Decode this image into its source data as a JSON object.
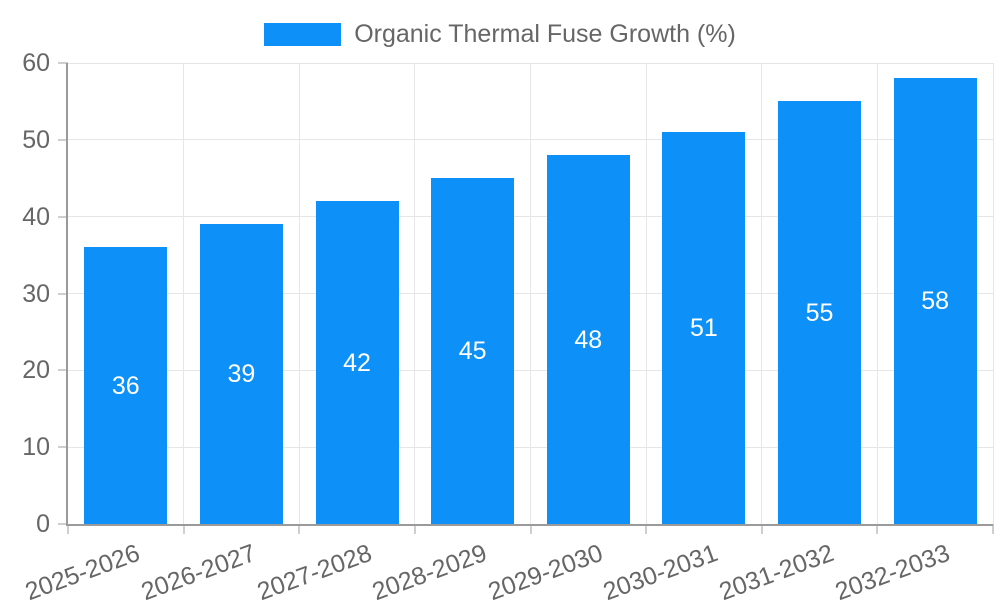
{
  "legend": {
    "swatch_color": "#0d90f8",
    "label": "Organic Thermal Fuse Growth (%)"
  },
  "colors": {
    "bar": "#0d90f8",
    "grid": "#e6e6e6",
    "axis_border": "#9a9a9a",
    "tick_stub": "#cfcfcf",
    "tick_text": "#666666",
    "value_label_text": "#ffffff",
    "background": "#ffffff"
  },
  "chart_data": {
    "type": "bar",
    "title": "Organic Thermal Fuse Growth (%)",
    "categories": [
      "2025-2026",
      "2026-2027",
      "2027-2028",
      "2028-2029",
      "2029-2030",
      "2030-2031",
      "2031-2032",
      "2032-2033"
    ],
    "values": [
      36,
      39,
      42,
      45,
      48,
      51,
      55,
      58
    ],
    "value_labels": [
      "36",
      "39",
      "42",
      "45",
      "48",
      "51",
      "55",
      "58"
    ],
    "xlabel": "",
    "ylabel": "",
    "ylim": [
      0,
      60
    ],
    "yticks": [
      0,
      10,
      20,
      30,
      40,
      50,
      60
    ],
    "grid": true,
    "legend_position": "top",
    "x_tick_rotation_deg": -20,
    "value_label_position": "center-inside"
  }
}
